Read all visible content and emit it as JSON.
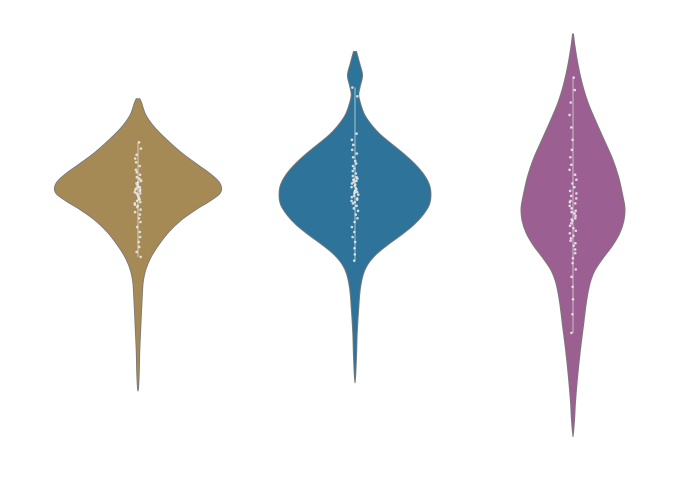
{
  "chart_data": {
    "type": "violin",
    "title": "",
    "xlabel": "",
    "ylabel": "",
    "axes_visible": false,
    "grid": false,
    "legend": "none",
    "point_color": "#e8e8e8",
    "outline_color": "#7a7a7a",
    "series": [
      {
        "color": "#a68a56",
        "min": -1.0,
        "max": 1.33,
        "profile": [
          [
            1.33,
            0.02
          ],
          [
            1.3,
            0.04
          ],
          [
            1.2,
            0.09
          ],
          [
            1.1,
            0.19
          ],
          [
            1.0,
            0.33
          ],
          [
            0.9,
            0.49
          ],
          [
            0.8,
            0.68
          ],
          [
            0.74,
            0.8
          ],
          [
            0.68,
            0.9
          ],
          [
            0.64,
            0.94
          ],
          [
            0.6,
            0.95
          ],
          [
            0.56,
            0.92
          ],
          [
            0.5,
            0.8
          ],
          [
            0.44,
            0.66
          ],
          [
            0.36,
            0.5
          ],
          [
            0.26,
            0.35
          ],
          [
            0.16,
            0.24
          ],
          [
            0.06,
            0.15
          ],
          [
            -0.04,
            0.09
          ],
          [
            -0.14,
            0.06
          ],
          [
            -0.24,
            0.05
          ],
          [
            -0.38,
            0.04
          ],
          [
            -0.54,
            0.03
          ],
          [
            -0.7,
            0.02
          ],
          [
            -0.86,
            0.015
          ],
          [
            -1.0,
            0.005
          ]
        ],
        "points": [
          0.98,
          0.93,
          0.88,
          0.85,
          0.82,
          0.79,
          0.76,
          0.74,
          0.72,
          0.7,
          0.69,
          0.68,
          0.67,
          0.66,
          0.65,
          0.64,
          0.63,
          0.62,
          0.61,
          0.6,
          0.6,
          0.59,
          0.58,
          0.57,
          0.56,
          0.55,
          0.54,
          0.53,
          0.52,
          0.51,
          0.5,
          0.49,
          0.48,
          0.46,
          0.44,
          0.42,
          0.4,
          0.37,
          0.34,
          0.3,
          0.26,
          0.22,
          0.18,
          0.14,
          0.1,
          0.06,
          0.62,
          0.57,
          0.53,
          0.47
        ]
      },
      {
        "color": "#2e7399",
        "min": -0.93,
        "max": 1.71,
        "profile": [
          [
            1.71,
            0.02
          ],
          [
            1.62,
            0.06
          ],
          [
            1.52,
            0.1
          ],
          [
            1.43,
            0.07
          ],
          [
            1.36,
            0.05
          ],
          [
            1.28,
            0.08
          ],
          [
            1.2,
            0.13
          ],
          [
            1.12,
            0.22
          ],
          [
            1.04,
            0.34
          ],
          [
            0.96,
            0.5
          ],
          [
            0.88,
            0.66
          ],
          [
            0.8,
            0.8
          ],
          [
            0.72,
            0.91
          ],
          [
            0.64,
            0.98
          ],
          [
            0.56,
            1.0
          ],
          [
            0.48,
            0.98
          ],
          [
            0.4,
            0.9
          ],
          [
            0.32,
            0.78
          ],
          [
            0.24,
            0.62
          ],
          [
            0.16,
            0.44
          ],
          [
            0.08,
            0.28
          ],
          [
            0.0,
            0.17
          ],
          [
            -0.08,
            0.11
          ],
          [
            -0.2,
            0.07
          ],
          [
            -0.35,
            0.05
          ],
          [
            -0.55,
            0.03
          ],
          [
            -0.75,
            0.02
          ],
          [
            -0.93,
            0.005
          ]
        ],
        "points": [
          1.42,
          1.35,
          1.05,
          1.0,
          0.96,
          0.92,
          0.89,
          0.86,
          0.83,
          0.81,
          0.79,
          0.77,
          0.75,
          0.73,
          0.71,
          0.7,
          0.69,
          0.68,
          0.67,
          0.66,
          0.65,
          0.64,
          0.63,
          0.62,
          0.61,
          0.6,
          0.59,
          0.58,
          0.57,
          0.56,
          0.55,
          0.54,
          0.53,
          0.52,
          0.51,
          0.5,
          0.49,
          0.47,
          0.45,
          0.43,
          0.4,
          0.37,
          0.34,
          0.3,
          0.26,
          0.22,
          0.18,
          0.13,
          0.08,
          0.03,
          0.68,
          0.58
        ]
      },
      {
        "color": "#9b5f91",
        "min": -1.37,
        "max": 1.85,
        "profile": [
          [
            1.85,
            0.01
          ],
          [
            1.75,
            0.04
          ],
          [
            1.6,
            0.1
          ],
          [
            1.45,
            0.18
          ],
          [
            1.3,
            0.29
          ],
          [
            1.15,
            0.44
          ],
          [
            1.0,
            0.6
          ],
          [
            0.85,
            0.76
          ],
          [
            0.7,
            0.88
          ],
          [
            0.55,
            0.96
          ],
          [
            0.45,
            1.0
          ],
          [
            0.35,
            0.98
          ],
          [
            0.25,
            0.9
          ],
          [
            0.15,
            0.76
          ],
          [
            0.05,
            0.58
          ],
          [
            -0.05,
            0.42
          ],
          [
            -0.15,
            0.33
          ],
          [
            -0.3,
            0.26
          ],
          [
            -0.5,
            0.2
          ],
          [
            -0.7,
            0.14
          ],
          [
            -0.9,
            0.09
          ],
          [
            -1.1,
            0.05
          ],
          [
            -1.25,
            0.03
          ],
          [
            -1.37,
            0.005
          ]
        ],
        "points": [
          1.5,
          1.4,
          1.3,
          1.2,
          1.1,
          1.0,
          0.92,
          0.86,
          0.8,
          0.76,
          0.72,
          0.68,
          0.65,
          0.62,
          0.59,
          0.57,
          0.55,
          0.53,
          0.51,
          0.49,
          0.47,
          0.45,
          0.43,
          0.41,
          0.39,
          0.37,
          0.35,
          0.33,
          0.31,
          0.29,
          0.27,
          0.25,
          0.23,
          0.21,
          0.19,
          0.17,
          0.15,
          0.12,
          0.09,
          0.05,
          0.01,
          -0.04,
          -0.1,
          -0.18,
          -0.28,
          -0.4,
          -0.55,
          0.5,
          0.42,
          0.36
        ]
      }
    ]
  }
}
